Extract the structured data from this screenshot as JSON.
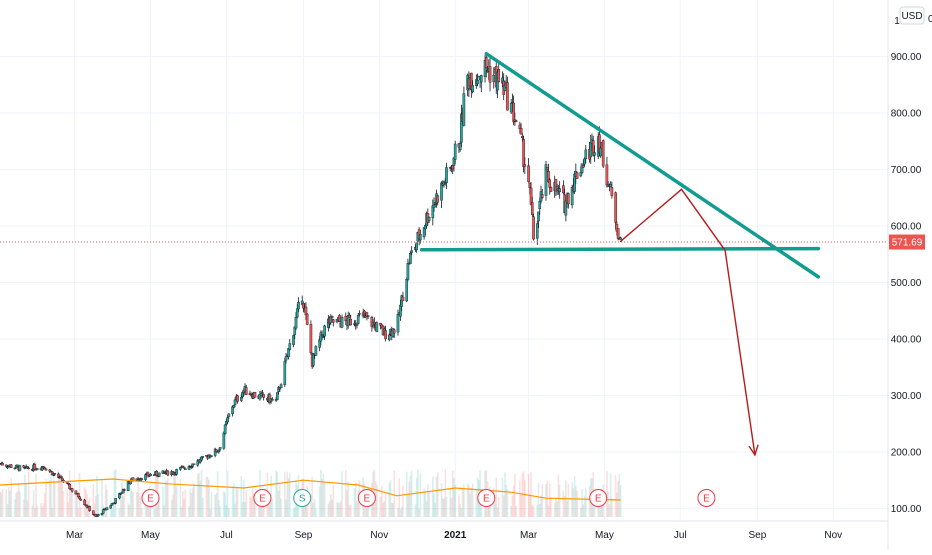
{
  "chart_data": {
    "type": "candlestick",
    "price_axis": {
      "currency": "USD",
      "top_tick": "1",
      "right_tick": "0",
      "ticks": [
        "900.00",
        "800.00",
        "700.00",
        "600.00",
        "500.00",
        "400.00",
        "300.00",
        "200.00",
        "100.00"
      ],
      "tick_values": [
        900,
        800,
        700,
        600,
        500,
        400,
        300,
        200,
        100
      ],
      "range": [
        78,
        1000
      ],
      "last_price_label": "571.69",
      "last_price": 571.69
    },
    "time_axis": {
      "ticks": [
        "Mar",
        "May",
        "Jul",
        "Sep",
        "Nov",
        "2021",
        "Mar",
        "May",
        "Jul",
        "Sep",
        "Nov"
      ],
      "tick_dates": [
        "2020-03-01",
        "2020-05-01",
        "2020-07-01",
        "2020-09-01",
        "2020-11-01",
        "2021-01-01",
        "2021-03-01",
        "2021-05-01",
        "2021-07-01",
        "2021-09-01",
        "2021-11-01"
      ],
      "bold_tick": "2021",
      "range": [
        "2020-01-01",
        "2021-12-15"
      ]
    },
    "price_path": [
      [
        "2020-01-01",
        180
      ],
      [
        "2020-01-20",
        170
      ],
      [
        "2020-02-05",
        175
      ],
      [
        "2020-02-20",
        150
      ],
      [
        "2020-03-05",
        120
      ],
      [
        "2020-03-18",
        85
      ],
      [
        "2020-04-01",
        110
      ],
      [
        "2020-04-15",
        150
      ],
      [
        "2020-05-01",
        160
      ],
      [
        "2020-05-20",
        165
      ],
      [
        "2020-06-10",
        185
      ],
      [
        "2020-06-25",
        205
      ],
      [
        "2020-07-05",
        280
      ],
      [
        "2020-07-15",
        310
      ],
      [
        "2020-07-25",
        300
      ],
      [
        "2020-08-10",
        290
      ],
      [
        "2020-08-20",
        380
      ],
      [
        "2020-08-31",
        480
      ],
      [
        "2020-09-08",
        360
      ],
      [
        "2020-09-20",
        430
      ],
      [
        "2020-10-05",
        430
      ],
      [
        "2020-10-20",
        440
      ],
      [
        "2020-11-05",
        410
      ],
      [
        "2020-11-15",
        420
      ],
      [
        "2020-11-25",
        540
      ],
      [
        "2020-12-10",
        620
      ],
      [
        "2020-12-28",
        700
      ],
      [
        "2021-01-05",
        760
      ],
      [
        "2021-01-10",
        860
      ],
      [
        "2021-01-26",
        880
      ],
      [
        "2021-02-08",
        850
      ],
      [
        "2021-02-20",
        780
      ],
      [
        "2021-03-01",
        680
      ],
      [
        "2021-03-05",
        580
      ],
      [
        "2021-03-15",
        690
      ],
      [
        "2021-03-30",
        640
      ],
      [
        "2021-04-10",
        700
      ],
      [
        "2021-04-26",
        760
      ],
      [
        "2021-05-05",
        670
      ],
      [
        "2021-05-14",
        570
      ]
    ],
    "volume_ma": [
      [
        "2020-01-01",
        0.3
      ],
      [
        "2020-02-15",
        0.35
      ],
      [
        "2020-04-01",
        0.4
      ],
      [
        "2020-05-15",
        0.32
      ],
      [
        "2020-07-15",
        0.25
      ],
      [
        "2020-09-01",
        0.38
      ],
      [
        "2020-10-15",
        0.3
      ],
      [
        "2020-11-15",
        0.12
      ],
      [
        "2021-01-01",
        0.25
      ],
      [
        "2021-02-15",
        0.18
      ],
      [
        "2021-03-15",
        0.08
      ],
      [
        "2021-05-14",
        0.05
      ]
    ],
    "event_markers": [
      {
        "label": "E",
        "date": "2020-05-01",
        "color": "#f23645"
      },
      {
        "label": "E",
        "date": "2020-07-30",
        "color": "#f23645"
      },
      {
        "label": "S",
        "date": "2020-08-31",
        "color": "#26a69a"
      },
      {
        "label": "E",
        "date": "2020-10-22",
        "color": "#f23645"
      },
      {
        "label": "E",
        "date": "2021-01-26",
        "color": "#f23645"
      },
      {
        "label": "E",
        "date": "2021-04-26",
        "color": "#f23645"
      },
      {
        "label": "E",
        "date": "2021-07-22",
        "color": "#f23645"
      }
    ],
    "drawings": {
      "color_trendline": "#129c8f",
      "color_projection": "#b71c1c",
      "descending_trendline": [
        [
          "2021-01-26",
          905
        ],
        [
          "2021-10-20",
          510
        ]
      ],
      "support_line": [
        [
          "2020-12-05",
          558
        ],
        [
          "2021-10-20",
          560
        ]
      ],
      "projection_path": [
        [
          "2021-05-14",
          573
        ],
        [
          "2021-07-02",
          665
        ],
        [
          "2021-08-06",
          557
        ],
        [
          "2021-08-30",
          195
        ]
      ]
    },
    "colors": {
      "up": "#26a69a",
      "down": "#ef5350",
      "wick": "#131722",
      "grid": "#f0f3fa",
      "volume_ma": "#ff9800",
      "last_price_line": "#ef5350"
    }
  }
}
